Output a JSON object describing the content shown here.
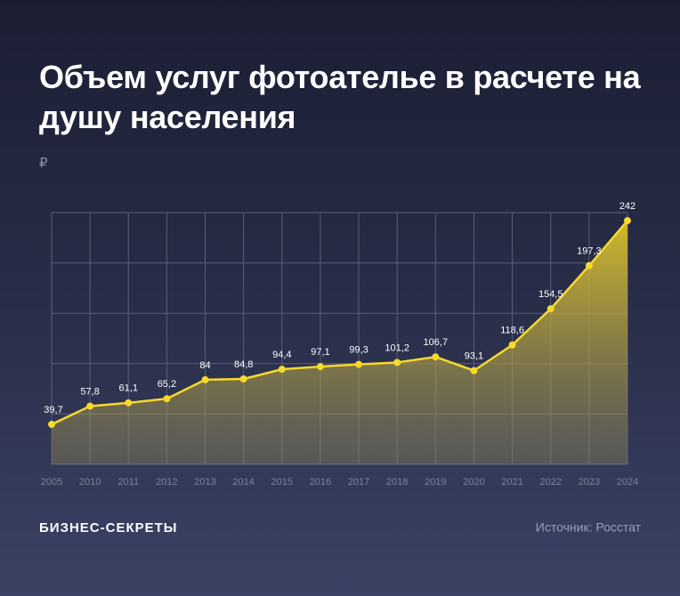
{
  "chart_data": {
    "type": "line",
    "title": "Объем услуг фотоателье в расчете на душу населения",
    "y_label": "₽",
    "categories": [
      "2005",
      "2010",
      "2011",
      "2012",
      "2013",
      "2014",
      "2015",
      "2016",
      "2017",
      "2018",
      "2019",
      "2020",
      "2021",
      "2022",
      "2023",
      "2024"
    ],
    "values": [
      39.7,
      57.8,
      61.1,
      65.2,
      84,
      84.8,
      94.4,
      97.1,
      99.3,
      101.2,
      106.7,
      93.1,
      118.6,
      154.5,
      197.3,
      242
    ],
    "value_labels": [
      "39,7",
      "57,8",
      "61,1",
      "65,2",
      "84",
      "84,8",
      "94,4",
      "97,1",
      "99,3",
      "101,2",
      "106,7",
      "93,1",
      "118,6",
      "154,5",
      "197,3",
      "242"
    ],
    "color": "#f7d92a",
    "ylim": [
      0,
      250
    ],
    "yticks": [
      0,
      50,
      100,
      150,
      200,
      250
    ],
    "grid": true,
    "brand": "БИЗНЕС-СЕКРЕТЫ",
    "source": "Источник: Росстат"
  }
}
